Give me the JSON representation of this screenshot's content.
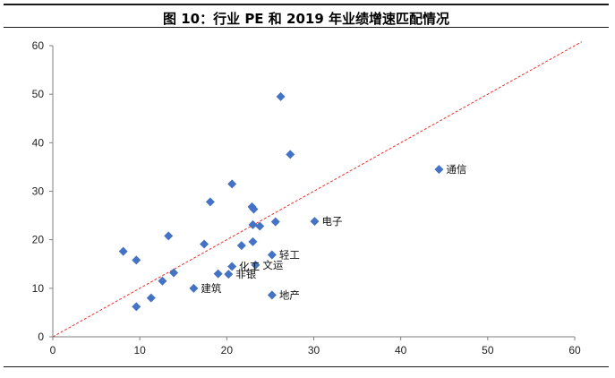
{
  "title": "图 10：行业 PE 和 2019 年业绩增速匹配情况",
  "chart_data": {
    "type": "scatter",
    "title": "图 10：行业 PE 和 2019 年业绩增速匹配情况",
    "xlabel": "",
    "ylabel": "",
    "xlim": [
      0,
      60
    ],
    "ylim": [
      0,
      60
    ],
    "x_ticks": [
      "0",
      "10",
      "20",
      "30",
      "40",
      "50",
      "60"
    ],
    "y_ticks": [
      "0",
      "10",
      "20",
      "30",
      "40",
      "50",
      "60"
    ],
    "grid": false,
    "legend": "none",
    "marker": "diamond",
    "marker_color": "#4472C4",
    "reference_line": {
      "from": [
        0,
        0
      ],
      "to": [
        60.8,
        60.8
      ],
      "style": "dashed",
      "color": "#E8322D"
    },
    "points": [
      {
        "x": 26.2,
        "y": 49.5,
        "label": ""
      },
      {
        "x": 27.3,
        "y": 37.6,
        "label": ""
      },
      {
        "x": 44.4,
        "y": 34.5,
        "label": "通信"
      },
      {
        "x": 20.6,
        "y": 31.5,
        "label": ""
      },
      {
        "x": 18.1,
        "y": 27.8,
        "label": ""
      },
      {
        "x": 22.9,
        "y": 26.8,
        "label": ""
      },
      {
        "x": 23.1,
        "y": 26.3,
        "label": ""
      },
      {
        "x": 30.1,
        "y": 23.8,
        "label": "电子"
      },
      {
        "x": 25.6,
        "y": 23.7,
        "label": ""
      },
      {
        "x": 23.0,
        "y": 23.1,
        "label": ""
      },
      {
        "x": 23.8,
        "y": 22.8,
        "label": ""
      },
      {
        "x": 13.3,
        "y": 20.8,
        "label": ""
      },
      {
        "x": 23.0,
        "y": 19.6,
        "label": ""
      },
      {
        "x": 17.4,
        "y": 19.1,
        "label": ""
      },
      {
        "x": 21.7,
        "y": 18.8,
        "label": ""
      },
      {
        "x": 8.1,
        "y": 17.6,
        "label": ""
      },
      {
        "x": 25.2,
        "y": 16.9,
        "label": "轻工"
      },
      {
        "x": 9.6,
        "y": 15.8,
        "label": ""
      },
      {
        "x": 23.3,
        "y": 14.8,
        "label": "文运"
      },
      {
        "x": 20.6,
        "y": 14.5,
        "label": "化工"
      },
      {
        "x": 13.9,
        "y": 13.2,
        "label": ""
      },
      {
        "x": 19.0,
        "y": 13.0,
        "label": ""
      },
      {
        "x": 20.2,
        "y": 12.9,
        "label": "非银"
      },
      {
        "x": 12.6,
        "y": 11.5,
        "label": ""
      },
      {
        "x": 16.2,
        "y": 10.0,
        "label": "建筑"
      },
      {
        "x": 25.2,
        "y": 8.6,
        "label": "地产"
      },
      {
        "x": 11.3,
        "y": 8.0,
        "label": ""
      },
      {
        "x": 9.6,
        "y": 6.2,
        "label": ""
      }
    ]
  }
}
